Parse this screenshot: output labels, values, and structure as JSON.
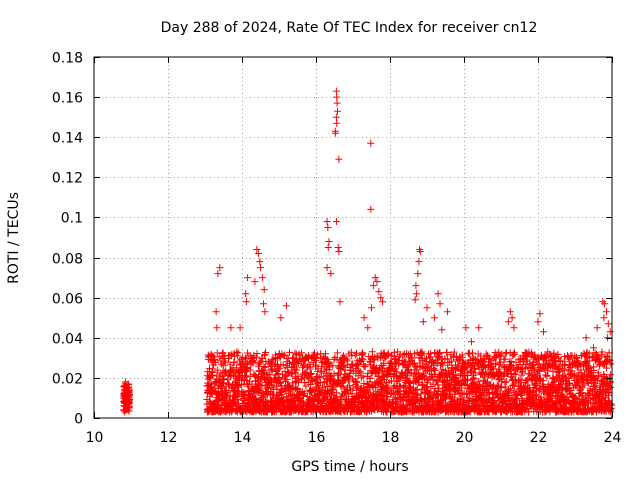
{
  "chart_data": {
    "type": "scatter",
    "title": "Day 288 of 2024, Rate Of TEC Index for receiver cn12",
    "xlabel": "GPS time / hours",
    "ylabel": "ROTI / TECUs",
    "xlim": [
      10,
      24
    ],
    "ylim": [
      0,
      0.18
    ],
    "xticks": [
      10,
      12,
      14,
      16,
      18,
      20,
      22,
      24
    ],
    "yticks": [
      0,
      0.02,
      0.04,
      0.06,
      0.08,
      0.1,
      0.12,
      0.14,
      0.16,
      0.18
    ],
    "xtick_labels": [
      "10",
      "12",
      "14",
      "16",
      "18",
      "20",
      "22",
      "24"
    ],
    "ytick_labels": [
      "0",
      "0.02",
      "0.04",
      "0.06",
      "0.08",
      "0.1",
      "0.12",
      "0.14",
      "0.16",
      "0.18"
    ],
    "grid": true,
    "marker": "+",
    "marker_color": "#ff0000",
    "series": [
      {
        "name": "ROTI",
        "points": [
          [
            10.8,
            0.004
          ],
          [
            10.82,
            0.008
          ],
          [
            10.84,
            0.012
          ],
          [
            10.86,
            0.015
          ],
          [
            10.88,
            0.01
          ],
          [
            10.9,
            0.006
          ],
          [
            10.92,
            0.017
          ],
          [
            10.94,
            0.013
          ],
          [
            10.96,
            0.009
          ],
          [
            10.83,
            0.003
          ],
          [
            10.87,
            0.016
          ],
          [
            10.91,
            0.011
          ],
          [
            10.95,
            0.005
          ],
          [
            10.85,
            0.018
          ],
          [
            13.4,
            0.075
          ],
          [
            13.35,
            0.072
          ],
          [
            13.3,
            0.053
          ],
          [
            13.32,
            0.045
          ],
          [
            14.15,
            0.07
          ],
          [
            14.1,
            0.062
          ],
          [
            14.12,
            0.058
          ],
          [
            14.4,
            0.084
          ],
          [
            14.45,
            0.082
          ],
          [
            14.48,
            0.078
          ],
          [
            14.5,
            0.075
          ],
          [
            14.55,
            0.07
          ],
          [
            14.6,
            0.064
          ],
          [
            14.58,
            0.057
          ],
          [
            14.62,
            0.053
          ],
          [
            14.35,
            0.068
          ],
          [
            15.2,
            0.056
          ],
          [
            15.05,
            0.05
          ],
          [
            13.7,
            0.045
          ],
          [
            13.95,
            0.045
          ],
          [
            16.3,
            0.098
          ],
          [
            16.32,
            0.095
          ],
          [
            16.35,
            0.088
          ],
          [
            16.33,
            0.085
          ],
          [
            16.3,
            0.075
          ],
          [
            16.4,
            0.072
          ],
          [
            16.55,
            0.098
          ],
          [
            16.55,
            0.163
          ],
          [
            16.56,
            0.16
          ],
          [
            16.57,
            0.157
          ],
          [
            16.58,
            0.153
          ],
          [
            16.55,
            0.15
          ],
          [
            16.56,
            0.147
          ],
          [
            16.52,
            0.143
          ],
          [
            16.53,
            0.142
          ],
          [
            16.62,
            0.129
          ],
          [
            16.6,
            0.085
          ],
          [
            16.62,
            0.083
          ],
          [
            16.65,
            0.058
          ],
          [
            17.48,
            0.137
          ],
          [
            17.48,
            0.104
          ],
          [
            17.6,
            0.07
          ],
          [
            17.65,
            0.068
          ],
          [
            17.55,
            0.066
          ],
          [
            17.7,
            0.063
          ],
          [
            17.75,
            0.06
          ],
          [
            17.8,
            0.058
          ],
          [
            17.5,
            0.055
          ],
          [
            17.4,
            0.045
          ],
          [
            17.3,
            0.05
          ],
          [
            18.8,
            0.084
          ],
          [
            18.82,
            0.083
          ],
          [
            18.78,
            0.078
          ],
          [
            18.75,
            0.072
          ],
          [
            18.7,
            0.066
          ],
          [
            18.72,
            0.062
          ],
          [
            18.68,
            0.059
          ],
          [
            19.3,
            0.062
          ],
          [
            19.35,
            0.057
          ],
          [
            19.0,
            0.055
          ],
          [
            19.2,
            0.05
          ],
          [
            19.55,
            0.053
          ],
          [
            18.9,
            0.048
          ],
          [
            19.4,
            0.044
          ],
          [
            20.05,
            0.045
          ],
          [
            20.4,
            0.045
          ],
          [
            20.2,
            0.038
          ],
          [
            21.25,
            0.053
          ],
          [
            21.3,
            0.05
          ],
          [
            21.2,
            0.048
          ],
          [
            21.35,
            0.045
          ],
          [
            22.05,
            0.052
          ],
          [
            22.0,
            0.048
          ],
          [
            22.15,
            0.043
          ],
          [
            23.3,
            0.04
          ],
          [
            23.6,
            0.045
          ],
          [
            23.5,
            0.035
          ],
          [
            23.75,
            0.058
          ],
          [
            23.8,
            0.057
          ],
          [
            23.85,
            0.053
          ],
          [
            23.78,
            0.05
          ],
          [
            23.9,
            0.047
          ],
          [
            23.95,
            0.043
          ],
          [
            23.88,
            0.04
          ]
        ]
      }
    ],
    "dense_band": {
      "x_start": 13.05,
      "x_end": 23.98,
      "y_floor": 0.003,
      "typical_max": 0.03
    }
  }
}
